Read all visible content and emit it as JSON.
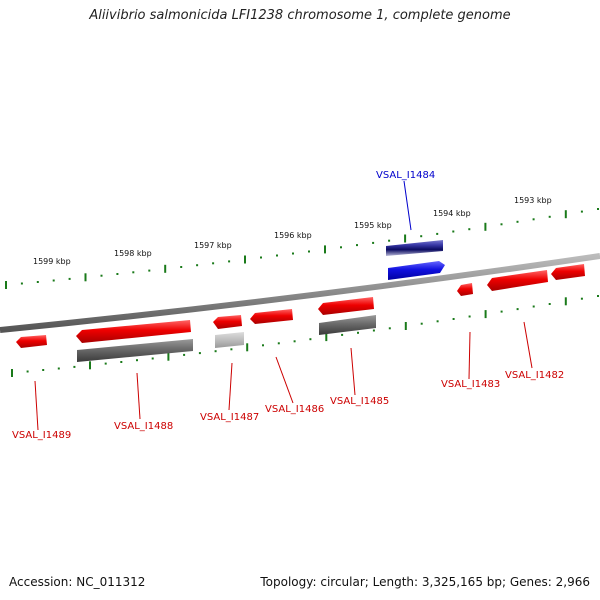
{
  "title": "Aliivibrio salmonicida LFI1238 chromosome 1, complete genome",
  "footer": {
    "accession": "Accession: NC_011312",
    "topology": "Topology: circular; Length: 3,325,165 bp; Genes: 2,966"
  },
  "scale_labels": [
    "1599 kbp",
    "1598 kbp",
    "1597 kbp",
    "1596 kbp",
    "1595 kbp",
    "1594 kbp",
    "1593 kbp"
  ],
  "genes": [
    {
      "name": "VSAL_I1489",
      "color": "#cc0000"
    },
    {
      "name": "VSAL_I1488",
      "color": "#cc0000"
    },
    {
      "name": "VSAL_I1487",
      "color": "#cc0000"
    },
    {
      "name": "VSAL_I1486",
      "color": "#cc0000"
    },
    {
      "name": "VSAL_I1485",
      "color": "#cc0000"
    },
    {
      "name": "VSAL_I1484",
      "color": "#0000cc"
    },
    {
      "name": "VSAL_I1483",
      "color": "#cc0000"
    },
    {
      "name": "VSAL_I1482",
      "color": "#cc0000"
    }
  ],
  "colors": {
    "forward_gene": "#1010e0",
    "reverse_gene": "#ee1111",
    "cds_grey": "#666666",
    "cds_light": "#bbbbbb",
    "scale_ticks": "#1a7a1a",
    "backbone": "#8a8a8a"
  }
}
